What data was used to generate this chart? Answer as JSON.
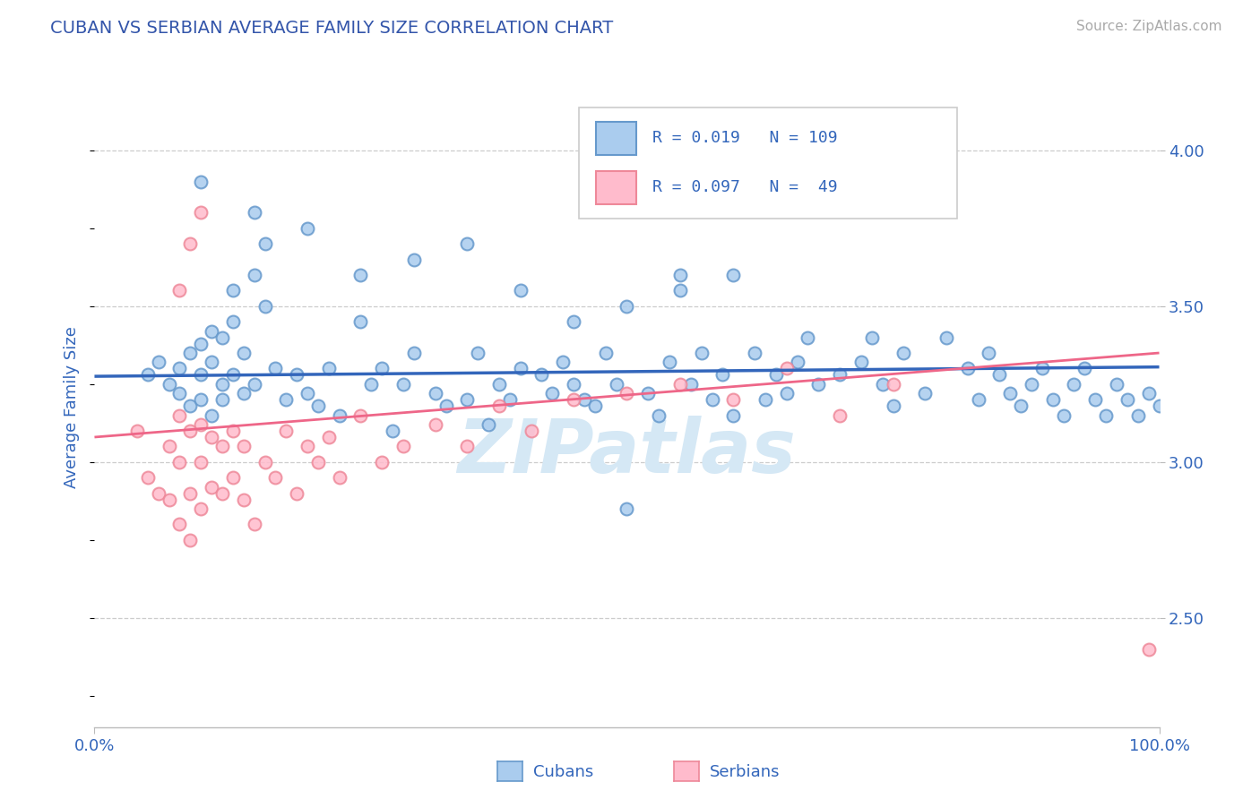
{
  "title": "CUBAN VS SERBIAN AVERAGE FAMILY SIZE CORRELATION CHART",
  "source_text": "Source: ZipAtlas.com",
  "ylabel": "Average Family Size",
  "yticks": [
    2.5,
    3.0,
    3.5,
    4.0
  ],
  "xlim": [
    0.0,
    1.0
  ],
  "ylim": [
    2.15,
    4.2
  ],
  "cubans_R": "0.019",
  "cubans_N": "109",
  "serbians_R": "0.097",
  "serbians_N": " 49",
  "blue_face": "#AACCEE",
  "blue_edge": "#6699CC",
  "pink_face": "#FFBBCC",
  "pink_edge": "#EE8899",
  "trend_blue": "#3366BB",
  "trend_pink": "#EE6688",
  "title_color": "#3355AA",
  "axis_tick_color": "#3366BB",
  "source_color": "#AAAAAA",
  "watermark_color": "#D5E8F5",
  "background_color": "#FFFFFF",
  "grid_color": "#CCCCCC",
  "legend_edge_color": "#CCCCCC",
  "cubans_x": [
    0.05,
    0.06,
    0.07,
    0.08,
    0.08,
    0.09,
    0.09,
    0.1,
    0.1,
    0.1,
    0.11,
    0.11,
    0.11,
    0.12,
    0.12,
    0.12,
    0.13,
    0.13,
    0.13,
    0.14,
    0.14,
    0.15,
    0.15,
    0.16,
    0.16,
    0.17,
    0.18,
    0.19,
    0.2,
    0.21,
    0.22,
    0.23,
    0.25,
    0.26,
    0.27,
    0.28,
    0.29,
    0.3,
    0.32,
    0.33,
    0.35,
    0.36,
    0.37,
    0.38,
    0.39,
    0.4,
    0.42,
    0.43,
    0.44,
    0.45,
    0.46,
    0.47,
    0.48,
    0.49,
    0.5,
    0.52,
    0.53,
    0.54,
    0.55,
    0.56,
    0.57,
    0.58,
    0.59,
    0.6,
    0.62,
    0.63,
    0.64,
    0.65,
    0.66,
    0.67,
    0.68,
    0.7,
    0.72,
    0.73,
    0.74,
    0.75,
    0.76,
    0.78,
    0.8,
    0.82,
    0.83,
    0.84,
    0.85,
    0.86,
    0.87,
    0.88,
    0.89,
    0.9,
    0.91,
    0.92,
    0.93,
    0.94,
    0.95,
    0.96,
    0.97,
    0.98,
    0.99,
    1.0,
    0.6,
    0.55,
    0.5,
    0.45,
    0.4,
    0.35,
    0.3,
    0.25,
    0.2,
    0.15,
    0.1
  ],
  "cubans_y": [
    3.28,
    3.32,
    3.25,
    3.3,
    3.22,
    3.18,
    3.35,
    3.2,
    3.28,
    3.38,
    3.15,
    3.32,
    3.42,
    3.2,
    3.25,
    3.4,
    3.55,
    3.28,
    3.45,
    3.22,
    3.35,
    3.6,
    3.25,
    3.7,
    3.5,
    3.3,
    3.2,
    3.28,
    3.22,
    3.18,
    3.3,
    3.15,
    3.45,
    3.25,
    3.3,
    3.1,
    3.25,
    3.35,
    3.22,
    3.18,
    3.2,
    3.35,
    3.12,
    3.25,
    3.2,
    3.3,
    3.28,
    3.22,
    3.32,
    3.25,
    3.2,
    3.18,
    3.35,
    3.25,
    2.85,
    3.22,
    3.15,
    3.32,
    3.6,
    3.25,
    3.35,
    3.2,
    3.28,
    3.15,
    3.35,
    3.2,
    3.28,
    3.22,
    3.32,
    3.4,
    3.25,
    3.28,
    3.32,
    3.4,
    3.25,
    3.18,
    3.35,
    3.22,
    3.4,
    3.3,
    3.2,
    3.35,
    3.28,
    3.22,
    3.18,
    3.25,
    3.3,
    3.2,
    3.15,
    3.25,
    3.3,
    3.2,
    3.15,
    3.25,
    3.2,
    3.15,
    3.22,
    3.18,
    3.6,
    3.55,
    3.5,
    3.45,
    3.55,
    3.7,
    3.65,
    3.6,
    3.75,
    3.8,
    3.9
  ],
  "serbians_x": [
    0.04,
    0.05,
    0.06,
    0.07,
    0.07,
    0.08,
    0.08,
    0.08,
    0.09,
    0.09,
    0.09,
    0.1,
    0.1,
    0.1,
    0.11,
    0.11,
    0.12,
    0.12,
    0.13,
    0.13,
    0.14,
    0.14,
    0.15,
    0.16,
    0.17,
    0.18,
    0.19,
    0.2,
    0.21,
    0.22,
    0.23,
    0.25,
    0.27,
    0.29,
    0.32,
    0.35,
    0.38,
    0.41,
    0.45,
    0.5,
    0.55,
    0.6,
    0.65,
    0.7,
    0.75,
    0.08,
    0.09,
    0.1,
    0.99
  ],
  "serbians_y": [
    3.1,
    2.95,
    2.9,
    2.88,
    3.05,
    2.8,
    3.0,
    3.15,
    2.75,
    2.9,
    3.1,
    2.85,
    3.0,
    3.12,
    2.92,
    3.08,
    2.9,
    3.05,
    2.95,
    3.1,
    2.88,
    3.05,
    2.8,
    3.0,
    2.95,
    3.1,
    2.9,
    3.05,
    3.0,
    3.08,
    2.95,
    3.15,
    3.0,
    3.05,
    3.12,
    3.05,
    3.18,
    3.1,
    3.2,
    3.22,
    3.25,
    3.2,
    3.3,
    3.15,
    3.25,
    3.55,
    3.7,
    3.8,
    2.4
  ],
  "cubans_trend": [
    3.275,
    3.305
  ],
  "serbians_trend": [
    3.08,
    3.35
  ],
  "marker_size": 100,
  "marker_linewidth": 1.5
}
